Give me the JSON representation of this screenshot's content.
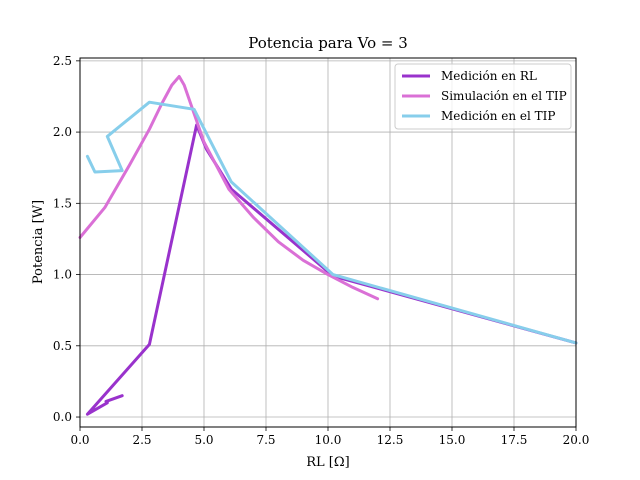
{
  "chart_data": {
    "type": "line",
    "title": "Potencia para Vo = 3",
    "xlabel": "RL [Ω]",
    "ylabel": "Potencia [W]",
    "xlim": [
      0,
      20
    ],
    "ylim": [
      -0.07,
      2.52
    ],
    "xticks": [
      0,
      2.5,
      5,
      7.5,
      10,
      12.5,
      15,
      17.5,
      20
    ],
    "xtick_labels": [
      "0.0",
      "2.5",
      "5.0",
      "7.5",
      "10.0",
      "12.5",
      "15.0",
      "17.5",
      "20.0"
    ],
    "yticks": [
      0,
      0.5,
      1,
      1.5,
      2,
      2.5
    ],
    "ytick_labels": [
      "0.0",
      "0.5",
      "1.0",
      "1.5",
      "2.0",
      "2.5"
    ],
    "grid": true,
    "legend_position": "top-right",
    "series": [
      {
        "name": "Medición en RL",
        "color": "#9932CC",
        "x": [
          1.7,
          1.05,
          1.1,
          0.3,
          2.8,
          4.7,
          5.1,
          6.1,
          10.2,
          20.0
        ],
        "y": [
          0.15,
          0.11,
          0.1,
          0.02,
          0.51,
          2.05,
          1.88,
          1.6,
          0.99,
          0.52
        ]
      },
      {
        "name": "Simulación en el TIP",
        "color": "#DA70D6",
        "x": [
          0.0,
          1.0,
          2.0,
          2.8,
          3.3,
          3.7,
          4.0,
          4.2,
          4.5,
          5.0,
          6.0,
          7.0,
          8.0,
          9.0,
          10.0,
          11.0,
          12.0
        ],
        "y": [
          1.26,
          1.47,
          1.77,
          2.02,
          2.2,
          2.33,
          2.39,
          2.33,
          2.18,
          1.93,
          1.6,
          1.4,
          1.23,
          1.1,
          1.0,
          0.91,
          0.83
        ]
      },
      {
        "name": "Medición en el TIP",
        "color": "#87CEEB",
        "x": [
          0.3,
          0.6,
          1.7,
          1.1,
          2.8,
          4.6,
          6.1,
          10.2,
          20.0
        ],
        "y": [
          1.83,
          1.72,
          1.73,
          1.97,
          2.21,
          2.16,
          1.65,
          1.0,
          0.52
        ]
      }
    ]
  }
}
